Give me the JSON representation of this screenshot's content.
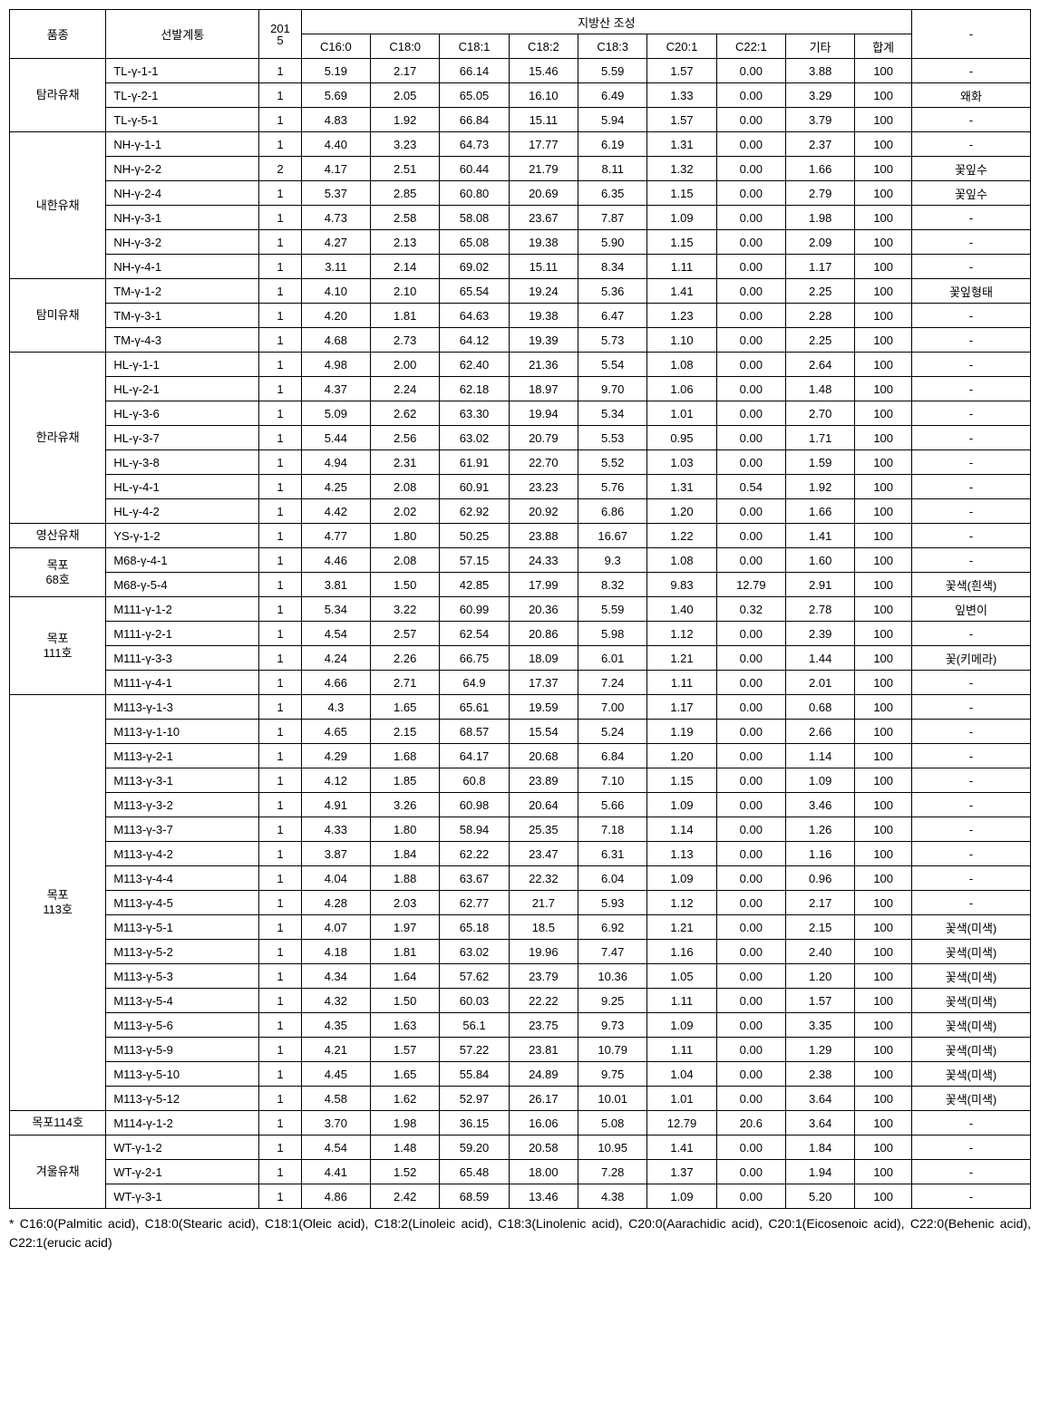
{
  "headers": {
    "variety": "품종",
    "line": "선발계통",
    "year": "2015",
    "group": "지방산  조성",
    "fatty": [
      "C16:0",
      "C18:0",
      "C18:1",
      "C18:2",
      "C18:3",
      "C20:1",
      "C22:1",
      "기타",
      "합계"
    ],
    "note": "-"
  },
  "groups": [
    {
      "name": "탐라유채",
      "rows": [
        {
          "line": "TL-γ-1-1",
          "yr": "1",
          "v": [
            "5.19",
            "2.17",
            "66.14",
            "15.46",
            "5.59",
            "1.57",
            "0.00",
            "3.88",
            "100"
          ],
          "note": "-"
        },
        {
          "line": "TL-γ-2-1",
          "yr": "1",
          "v": [
            "5.69",
            "2.05",
            "65.05",
            "16.10",
            "6.49",
            "1.33",
            "0.00",
            "3.29",
            "100"
          ],
          "note": "왜화"
        },
        {
          "line": "TL-γ-5-1",
          "yr": "1",
          "v": [
            "4.83",
            "1.92",
            "66.84",
            "15.11",
            "5.94",
            "1.57",
            "0.00",
            "3.79",
            "100"
          ],
          "note": "-"
        }
      ]
    },
    {
      "name": "내한유채",
      "rows": [
        {
          "line": "NH-γ-1-1",
          "yr": "1",
          "v": [
            "4.40",
            "3.23",
            "64.73",
            "17.77",
            "6.19",
            "1.31",
            "0.00",
            "2.37",
            "100"
          ],
          "note": "-"
        },
        {
          "line": "NH-γ-2-2",
          "yr": "2",
          "v": [
            "4.17",
            "2.51",
            "60.44",
            "21.79",
            "8.11",
            "1.32",
            "0.00",
            "1.66",
            "100"
          ],
          "note": "꽃잎수"
        },
        {
          "line": "NH-γ-2-4",
          "yr": "1",
          "v": [
            "5.37",
            "2.85",
            "60.80",
            "20.69",
            "6.35",
            "1.15",
            "0.00",
            "2.79",
            "100"
          ],
          "note": "꽃잎수"
        },
        {
          "line": "NH-γ-3-1",
          "yr": "1",
          "v": [
            "4.73",
            "2.58",
            "58.08",
            "23.67",
            "7.87",
            "1.09",
            "0.00",
            "1.98",
            "100"
          ],
          "note": "-"
        },
        {
          "line": "NH-γ-3-2",
          "yr": "1",
          "v": [
            "4.27",
            "2.13",
            "65.08",
            "19.38",
            "5.90",
            "1.15",
            "0.00",
            "2.09",
            "100"
          ],
          "note": "-"
        },
        {
          "line": "NH-γ-4-1",
          "yr": "1",
          "v": [
            "3.11",
            "2.14",
            "69.02",
            "15.11",
            "8.34",
            "1.11",
            "0.00",
            "1.17",
            "100"
          ],
          "note": "-"
        }
      ]
    },
    {
      "name": "탐미유채",
      "rows": [
        {
          "line": "TM-γ-1-2",
          "yr": "1",
          "v": [
            "4.10",
            "2.10",
            "65.54",
            "19.24",
            "5.36",
            "1.41",
            "0.00",
            "2.25",
            "100"
          ],
          "note": "꽃잎형태"
        },
        {
          "line": "TM-γ-3-1",
          "yr": "1",
          "v": [
            "4.20",
            "1.81",
            "64.63",
            "19.38",
            "6.47",
            "1.23",
            "0.00",
            "2.28",
            "100"
          ],
          "note": "-"
        },
        {
          "line": "TM-γ-4-3",
          "yr": "1",
          "v": [
            "4.68",
            "2.73",
            "64.12",
            "19.39",
            "5.73",
            "1.10",
            "0.00",
            "2.25",
            "100"
          ],
          "note": "-"
        }
      ]
    },
    {
      "name": "한라유채",
      "rows": [
        {
          "line": "HL-γ-1-1",
          "yr": "1",
          "v": [
            "4.98",
            "2.00",
            "62.40",
            "21.36",
            "5.54",
            "1.08",
            "0.00",
            "2.64",
            "100"
          ],
          "note": "-"
        },
        {
          "line": "HL-γ-2-1",
          "yr": "1",
          "v": [
            "4.37",
            "2.24",
            "62.18",
            "18.97",
            "9.70",
            "1.06",
            "0.00",
            "1.48",
            "100"
          ],
          "note": "-"
        },
        {
          "line": "HL-γ-3-6",
          "yr": "1",
          "v": [
            "5.09",
            "2.62",
            "63.30",
            "19.94",
            "5.34",
            "1.01",
            "0.00",
            "2.70",
            "100"
          ],
          "note": "-"
        },
        {
          "line": "HL-γ-3-7",
          "yr": "1",
          "v": [
            "5.44",
            "2.56",
            "63.02",
            "20.79",
            "5.53",
            "0.95",
            "0.00",
            "1.71",
            "100"
          ],
          "note": "-"
        },
        {
          "line": "HL-γ-3-8",
          "yr": "1",
          "v": [
            "4.94",
            "2.31",
            "61.91",
            "22.70",
            "5.52",
            "1.03",
            "0.00",
            "1.59",
            "100"
          ],
          "note": "-"
        },
        {
          "line": "HL-γ-4-1",
          "yr": "1",
          "v": [
            "4.25",
            "2.08",
            "60.91",
            "23.23",
            "5.76",
            "1.31",
            "0.54",
            "1.92",
            "100"
          ],
          "note": "-"
        },
        {
          "line": "HL-γ-4-2",
          "yr": "1",
          "v": [
            "4.42",
            "2.02",
            "62.92",
            "20.92",
            "6.86",
            "1.20",
            "0.00",
            "1.66",
            "100"
          ],
          "note": "-"
        }
      ]
    },
    {
      "name": "영산유채",
      "rows": [
        {
          "line": "YS-γ-1-2",
          "yr": "1",
          "v": [
            "4.77",
            "1.80",
            "50.25",
            "23.88",
            "16.67",
            "1.22",
            "0.00",
            "1.41",
            "100"
          ],
          "note": "-"
        }
      ]
    },
    {
      "name": "목포\n68호",
      "rows": [
        {
          "line": "M68-γ-4-1",
          "yr": "1",
          "v": [
            "4.46",
            "2.08",
            "57.15",
            "24.33",
            "9.3",
            "1.08",
            "0.00",
            "1.60",
            "100"
          ],
          "note": "-"
        },
        {
          "line": "M68-γ-5-4",
          "yr": "1",
          "v": [
            "3.81",
            "1.50",
            "42.85",
            "17.99",
            "8.32",
            "9.83",
            "12.79",
            "2.91",
            "100"
          ],
          "note": "꽃색(흰색)"
        }
      ]
    },
    {
      "name": "목포\n111호",
      "rows": [
        {
          "line": "M111-γ-1-2",
          "yr": "1",
          "v": [
            "5.34",
            "3.22",
            "60.99",
            "20.36",
            "5.59",
            "1.40",
            "0.32",
            "2.78",
            "100"
          ],
          "note": "잎변이"
        },
        {
          "line": "M111-γ-2-1",
          "yr": "1",
          "v": [
            "4.54",
            "2.57",
            "62.54",
            "20.86",
            "5.98",
            "1.12",
            "0.00",
            "2.39",
            "100"
          ],
          "note": "-"
        },
        {
          "line": "M111-γ-3-3",
          "yr": "1",
          "v": [
            "4.24",
            "2.26",
            "66.75",
            "18.09",
            "6.01",
            "1.21",
            "0.00",
            "1.44",
            "100"
          ],
          "note": "꽃(키메라)"
        },
        {
          "line": "M111-γ-4-1",
          "yr": "1",
          "v": [
            "4.66",
            "2.71",
            "64.9",
            "17.37",
            "7.24",
            "1.11",
            "0.00",
            "2.01",
            "100"
          ],
          "note": "-"
        }
      ]
    },
    {
      "name": "목포\n113호",
      "rows": [
        {
          "line": "M113-γ-1-3",
          "yr": "1",
          "v": [
            "4.3",
            "1.65",
            "65.61",
            "19.59",
            "7.00",
            "1.17",
            "0.00",
            "0.68",
            "100"
          ],
          "note": "-"
        },
        {
          "line": "M113-γ-1-10",
          "yr": "1",
          "v": [
            "4.65",
            "2.15",
            "68.57",
            "15.54",
            "5.24",
            "1.19",
            "0.00",
            "2.66",
            "100"
          ],
          "note": "-"
        },
        {
          "line": "M113-γ-2-1",
          "yr": "1",
          "v": [
            "4.29",
            "1.68",
            "64.17",
            "20.68",
            "6.84",
            "1.20",
            "0.00",
            "1.14",
            "100"
          ],
          "note": "-"
        },
        {
          "line": "M113-γ-3-1",
          "yr": "1",
          "v": [
            "4.12",
            "1.85",
            "60.8",
            "23.89",
            "7.10",
            "1.15",
            "0.00",
            "1.09",
            "100"
          ],
          "note": "-"
        },
        {
          "line": "M113-γ-3-2",
          "yr": "1",
          "v": [
            "4.91",
            "3.26",
            "60.98",
            "20.64",
            "5.66",
            "1.09",
            "0.00",
            "3.46",
            "100"
          ],
          "note": "-"
        },
        {
          "line": "M113-γ-3-7",
          "yr": "1",
          "v": [
            "4.33",
            "1.80",
            "58.94",
            "25.35",
            "7.18",
            "1.14",
            "0.00",
            "1.26",
            "100"
          ],
          "note": "-"
        },
        {
          "line": "M113-γ-4-2",
          "yr": "1",
          "v": [
            "3.87",
            "1.84",
            "62.22",
            "23.47",
            "6.31",
            "1.13",
            "0.00",
            "1.16",
            "100"
          ],
          "note": "-"
        },
        {
          "line": "M113-γ-4-4",
          "yr": "1",
          "v": [
            "4.04",
            "1.88",
            "63.67",
            "22.32",
            "6.04",
            "1.09",
            "0.00",
            "0.96",
            "100"
          ],
          "note": "-"
        },
        {
          "line": "M113-γ-4-5",
          "yr": "1",
          "v": [
            "4.28",
            "2.03",
            "62.77",
            "21.7",
            "5.93",
            "1.12",
            "0.00",
            "2.17",
            "100"
          ],
          "note": "-"
        },
        {
          "line": "M113-γ-5-1",
          "yr": "1",
          "v": [
            "4.07",
            "1.97",
            "65.18",
            "18.5",
            "6.92",
            "1.21",
            "0.00",
            "2.15",
            "100"
          ],
          "note": "꽃색(미색)"
        },
        {
          "line": "M113-γ-5-2",
          "yr": "1",
          "v": [
            "4.18",
            "1.81",
            "63.02",
            "19.96",
            "7.47",
            "1.16",
            "0.00",
            "2.40",
            "100"
          ],
          "note": "꽃색(미색)"
        },
        {
          "line": "M113-γ-5-3",
          "yr": "1",
          "v": [
            "4.34",
            "1.64",
            "57.62",
            "23.79",
            "10.36",
            "1.05",
            "0.00",
            "1.20",
            "100"
          ],
          "note": "꽃색(미색)"
        },
        {
          "line": "M113-γ-5-4",
          "yr": "1",
          "v": [
            "4.32",
            "1.50",
            "60.03",
            "22.22",
            "9.25",
            "1.11",
            "0.00",
            "1.57",
            "100"
          ],
          "note": "꽃색(미색)"
        },
        {
          "line": "M113-γ-5-6",
          "yr": "1",
          "v": [
            "4.35",
            "1.63",
            "56.1",
            "23.75",
            "9.73",
            "1.09",
            "0.00",
            "3.35",
            "100"
          ],
          "note": "꽃색(미색)"
        },
        {
          "line": "M113-γ-5-9",
          "yr": "1",
          "v": [
            "4.21",
            "1.57",
            "57.22",
            "23.81",
            "10.79",
            "1.11",
            "0.00",
            "1.29",
            "100"
          ],
          "note": "꽃색(미색)"
        },
        {
          "line": "M113-γ-5-10",
          "yr": "1",
          "v": [
            "4.45",
            "1.65",
            "55.84",
            "24.89",
            "9.75",
            "1.04",
            "0.00",
            "2.38",
            "100"
          ],
          "note": "꽃색(미색)"
        },
        {
          "line": "M113-γ-5-12",
          "yr": "1",
          "v": [
            "4.58",
            "1.62",
            "52.97",
            "26.17",
            "10.01",
            "1.01",
            "0.00",
            "3.64",
            "100"
          ],
          "note": "꽃색(미색)"
        }
      ]
    },
    {
      "name": "목포114호",
      "rows": [
        {
          "line": "M114-γ-1-2",
          "yr": "1",
          "v": [
            "3.70",
            "1.98",
            "36.15",
            "16.06",
            "5.08",
            "12.79",
            "20.6",
            "3.64",
            "100"
          ],
          "note": "-"
        }
      ]
    },
    {
      "name": "겨울유채",
      "rows": [
        {
          "line": "WT-γ-1-2",
          "yr": "1",
          "v": [
            "4.54",
            "1.48",
            "59.20",
            "20.58",
            "10.95",
            "1.41",
            "0.00",
            "1.84",
            "100"
          ],
          "note": "-"
        },
        {
          "line": "WT-γ-2-1",
          "yr": "1",
          "v": [
            "4.41",
            "1.52",
            "65.48",
            "18.00",
            "7.28",
            "1.37",
            "0.00",
            "1.94",
            "100"
          ],
          "note": "-"
        },
        {
          "line": "WT-γ-3-1",
          "yr": "1",
          "v": [
            "4.86",
            "2.42",
            "68.59",
            "13.46",
            "4.38",
            "1.09",
            "0.00",
            "5.20",
            "100"
          ],
          "note": "-"
        }
      ]
    }
  ],
  "footnote": "*  C16:0(Palmitic  acid),  C18:0(Stearic  acid),  C18:1(Oleic  acid),  C18:2(Linoleic  acid), C18:3(Linolenic acid), C20:0(Aarachidic acid), C20:1(Eicosenoic acid), C22:0(Behenic acid), C22:1(erucic acid)"
}
